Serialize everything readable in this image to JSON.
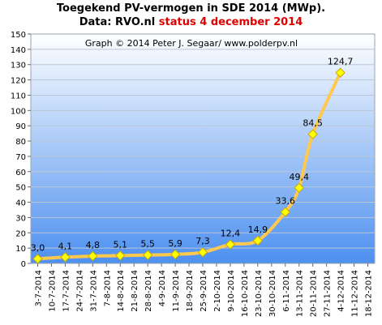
{
  "header": {
    "title_line1": "Toegekend PV-vermogen in SDE 2014 (MWp).",
    "title_line2_prefix": "Data: RVO.nl",
    "title_line2_status": "status 4 december 2014"
  },
  "colors": {
    "status_text": "#e00000",
    "line": "#ffc94d",
    "marker_fill": "#ffff00",
    "marker_stroke": "#c9a800",
    "plot_top": "#ffffff",
    "plot_bottom": "#4d90f0"
  },
  "chart_data": {
    "type": "line",
    "title": "Toegekend PV-vermogen in SDE 2014 (MWp).",
    "subtitle": "Data: RVO.nl status 4 december 2014",
    "annotation": "Graph © 2014 Peter J. Segaar/ www.polderpv.nl",
    "xlabel": "",
    "ylabel": "",
    "ylim": [
      0,
      150
    ],
    "ytick_step": 10,
    "grid": "horizontal",
    "categories": [
      "3-7-2014",
      "10-7-2014",
      "17-7-2014",
      "24-7-2014",
      "31-7-2014",
      "7-8-2014",
      "14-8-2014",
      "21-8-2014",
      "28-8-2014",
      "4-9-2014",
      "11-9-2014",
      "18-9-2014",
      "25-9-2014",
      "2-10-2014",
      "9-10-2014",
      "16-10-2014",
      "23-10-2014",
      "30-10-2014",
      "6-11-2014",
      "13-11-2014",
      "20-11-2014",
      "27-11-2014",
      "4-12-2014",
      "11-12-2014",
      "18-12-2014"
    ],
    "points": [
      {
        "x": "3-7-2014",
        "y": 3.0,
        "label": "3,0"
      },
      {
        "x": "17-7-2014",
        "y": 4.1,
        "label": "4,1"
      },
      {
        "x": "31-7-2014",
        "y": 4.8,
        "label": "4,8"
      },
      {
        "x": "14-8-2014",
        "y": 5.1,
        "label": "5,1"
      },
      {
        "x": "28-8-2014",
        "y": 5.5,
        "label": "5,5"
      },
      {
        "x": "11-9-2014",
        "y": 5.9,
        "label": "5,9"
      },
      {
        "x": "25-9-2014",
        "y": 7.3,
        "label": "7,3"
      },
      {
        "x": "9-10-2014",
        "y": 12.4,
        "label": "12,4"
      },
      {
        "x": "23-10-2014",
        "y": 14.9,
        "label": "14,9"
      },
      {
        "x": "6-11-2014",
        "y": 33.6,
        "label": "33,6"
      },
      {
        "x": "13-11-2014",
        "y": 49.4,
        "label": "49,4"
      },
      {
        "x": "20-11-2014",
        "y": 84.5,
        "label": "84,5"
      },
      {
        "x": "4-12-2014",
        "y": 124.7,
        "label": "124,7"
      }
    ]
  }
}
